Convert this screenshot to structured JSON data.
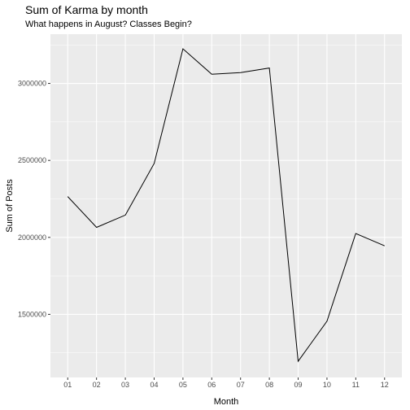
{
  "chart_data": {
    "type": "line",
    "title": "Sum of Karma by month",
    "subtitle": "What happens in August? Classes Begin?",
    "xlabel": "Month",
    "ylabel": "Sum of Posts",
    "categories": [
      "01",
      "02",
      "03",
      "04",
      "05",
      "06",
      "07",
      "08",
      "09",
      "10",
      "11",
      "12"
    ],
    "series": [
      {
        "values": [
          2265000,
          2065000,
          2145000,
          2480000,
          3225000,
          3060000,
          3070000,
          3100000,
          1195000,
          1455000,
          2025000,
          1945000
        ]
      }
    ],
    "y_ticks": [
      1500000,
      2000000,
      2500000,
      3000000
    ],
    "y_tick_labels": [
      "1500000",
      "2000000",
      "2500000",
      "3000000"
    ],
    "ylim": [
      1090000,
      3320000
    ],
    "grid": true,
    "colors": {
      "panel": "#ebebeb",
      "grid": "#ffffff",
      "line": "#000000"
    }
  }
}
